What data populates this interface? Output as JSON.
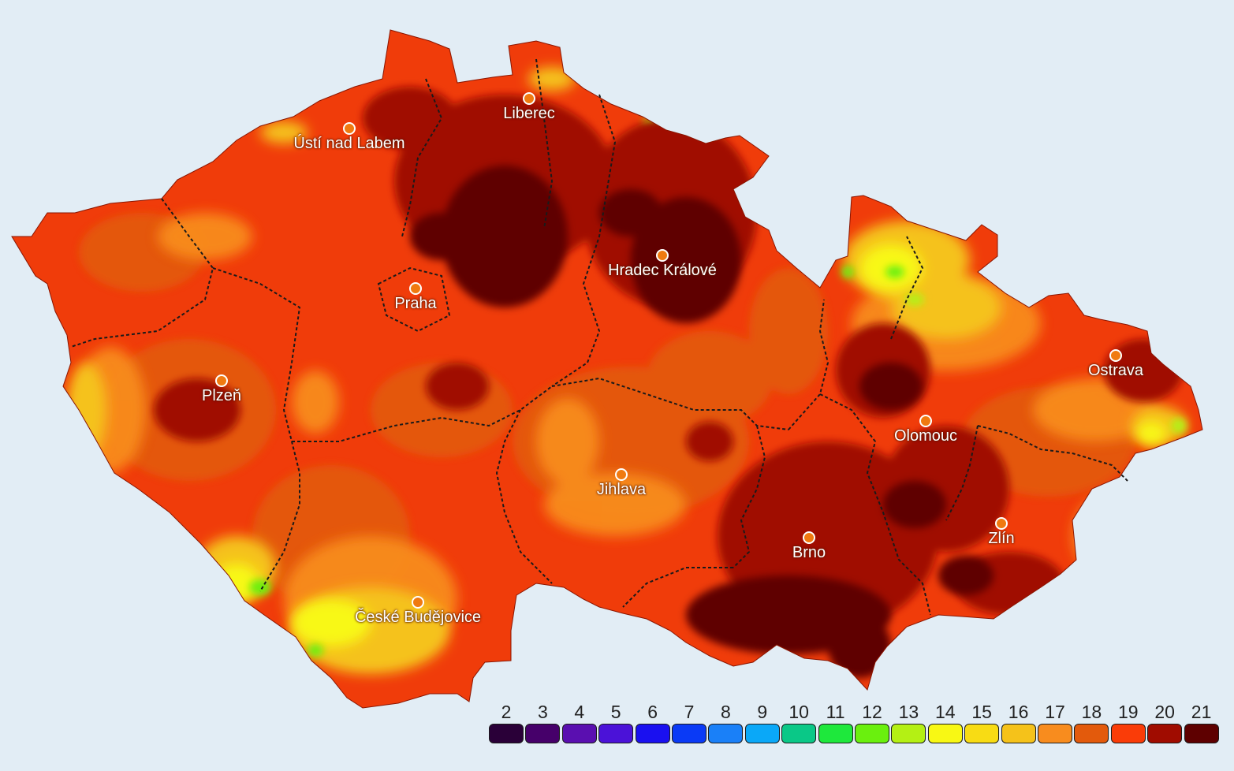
{
  "map": {
    "country_fill": "#f03c0a",
    "background": "#e2edf5",
    "border_line": "#1a1a1a",
    "city_marker_color": "#f07a10"
  },
  "cities": [
    {
      "name": "Liberec"
    },
    {
      "name": "Ústí nad Labem"
    },
    {
      "name": "Hradec Králové"
    },
    {
      "name": "Praha"
    },
    {
      "name": "Ostrava"
    },
    {
      "name": "Plzeň"
    },
    {
      "name": "Olomouc"
    },
    {
      "name": "Jihlava"
    },
    {
      "name": "Brno"
    },
    {
      "name": "Zlín"
    },
    {
      "name": "České Budějovice"
    }
  ],
  "legend": {
    "items": [
      {
        "label": "2",
        "color": "#2a0038"
      },
      {
        "label": "3",
        "color": "#46006a"
      },
      {
        "label": "4",
        "color": "#5a0fb0"
      },
      {
        "label": "5",
        "color": "#4b12d8"
      },
      {
        "label": "6",
        "color": "#1a10f0"
      },
      {
        "label": "7",
        "color": "#0a3af6"
      },
      {
        "label": "8",
        "color": "#1a80f8"
      },
      {
        "label": "9",
        "color": "#0aa8f8"
      },
      {
        "label": "10",
        "color": "#0ac887"
      },
      {
        "label": "11",
        "color": "#1ee83c"
      },
      {
        "label": "12",
        "color": "#6af00e"
      },
      {
        "label": "13",
        "color": "#b4f014"
      },
      {
        "label": "14",
        "color": "#f8f814"
      },
      {
        "label": "15",
        "color": "#f8dc14"
      },
      {
        "label": "16",
        "color": "#f5c21a"
      },
      {
        "label": "17",
        "color": "#f88c1e"
      },
      {
        "label": "18",
        "color": "#e35a0c"
      },
      {
        "label": "19",
        "color": "#fa3c08"
      },
      {
        "label": "20",
        "color": "#a00c00"
      },
      {
        "label": "21",
        "color": "#5e0000"
      }
    ]
  }
}
